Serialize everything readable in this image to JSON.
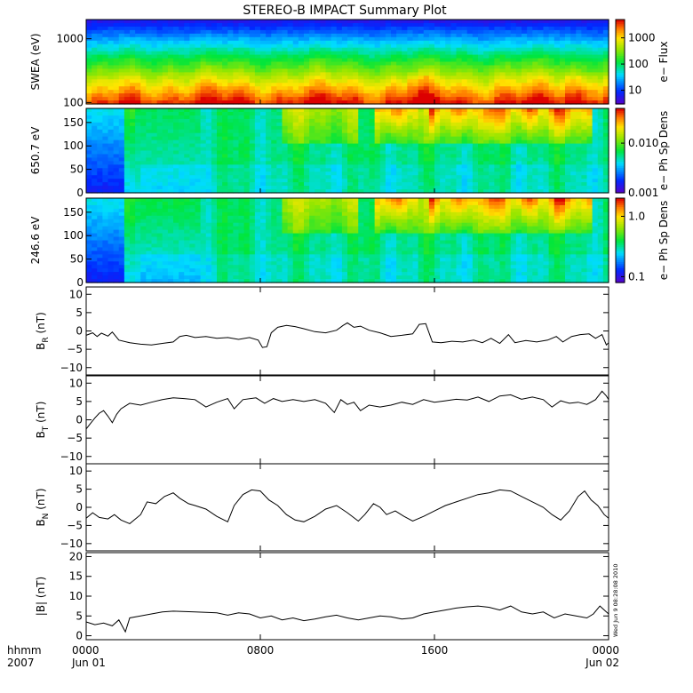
{
  "title": "STEREO-B IMPACT Summary Plot",
  "timestamp": "Wed Jun  9 08:28:08 2010",
  "chart_data": {
    "type": "line",
    "x_range_hours": [
      0,
      24
    ],
    "x_ticks": [
      {
        "hour": 0,
        "time": "0000",
        "date": "Jun 01"
      },
      {
        "hour": 8,
        "time": "0800",
        "date": ""
      },
      {
        "hour": 16,
        "time": "1600",
        "date": ""
      },
      {
        "hour": 24,
        "time": "0000",
        "date": "Jun 02"
      }
    ],
    "x_corner_labels": [
      "hhmm",
      "2007"
    ],
    "spectrograms": [
      {
        "id": "swea",
        "ylabel": "SWEA (eV)",
        "yscale": "log",
        "ylim": [
          95,
          2000
        ],
        "yticks": [
          {
            "v": 100,
            "label": "100"
          },
          {
            "v": 1000,
            "label": "1000"
          }
        ],
        "colorbar_label": "e− Flux",
        "colorbar_scale": "log",
        "colorbar_range": [
          3,
          5000
        ],
        "colorbar_ticks": [
          {
            "v": 10,
            "label": "10"
          },
          {
            "v": 100,
            "label": "100"
          },
          {
            "v": 1000,
            "label": "1000"
          }
        ]
      },
      {
        "id": "pad650",
        "ylabel": "650.7 eV",
        "yscale": "linear",
        "ylim": [
          0,
          180
        ],
        "yticks": [
          {
            "v": 0,
            "label": "0"
          },
          {
            "v": 50,
            "label": "50"
          },
          {
            "v": 100,
            "label": "100"
          },
          {
            "v": 150,
            "label": "150"
          }
        ],
        "colorbar_label": "e− Ph Sp Dens",
        "colorbar_scale": "log",
        "colorbar_range": [
          0.001,
          0.05
        ],
        "colorbar_ticks": [
          {
            "v": 0.001,
            "label": "0.001"
          },
          {
            "v": 0.01,
            "label": "0.010"
          }
        ]
      },
      {
        "id": "pad246",
        "ylabel": "246.6 eV",
        "yscale": "linear",
        "ylim": [
          0,
          180
        ],
        "yticks": [
          {
            "v": 0,
            "label": "0"
          },
          {
            "v": 50,
            "label": "50"
          },
          {
            "v": 100,
            "label": "100"
          },
          {
            "v": 150,
            "label": "150"
          }
        ],
        "colorbar_label": "e− Ph Sp Dens",
        "colorbar_scale": "log",
        "colorbar_range": [
          0.08,
          2.0
        ],
        "colorbar_ticks": [
          {
            "v": 0.1,
            "label": "0.1"
          },
          {
            "v": 1.0,
            "label": "1.0"
          }
        ]
      }
    ],
    "series": [
      {
        "id": "br",
        "ylabel_main": "B",
        "ylabel_sub": "R",
        "ylabel_unit": " (nT)",
        "ylim": [
          -12,
          12
        ],
        "yticks": [
          {
            "v": -10,
            "label": "−10"
          },
          {
            "v": -5,
            "label": "−5"
          },
          {
            "v": 0,
            "label": "0"
          },
          {
            "v": 5,
            "label": "5"
          },
          {
            "v": 10,
            "label": "10"
          }
        ],
        "points": [
          [
            0,
            -1.2
          ],
          [
            0.3,
            -0.5
          ],
          [
            0.5,
            -1.5
          ],
          [
            0.7,
            -0.6
          ],
          [
            1.0,
            -1.4
          ],
          [
            1.2,
            -0.3
          ],
          [
            1.5,
            -2.5
          ],
          [
            2.0,
            -3.2
          ],
          [
            2.5,
            -3.6
          ],
          [
            3.0,
            -3.8
          ],
          [
            3.5,
            -3.4
          ],
          [
            4.0,
            -3.0
          ],
          [
            4.3,
            -1.5
          ],
          [
            4.6,
            -1.2
          ],
          [
            5.0,
            -1.8
          ],
          [
            5.5,
            -1.5
          ],
          [
            6.0,
            -2.0
          ],
          [
            6.5,
            -1.8
          ],
          [
            7.0,
            -2.3
          ],
          [
            7.5,
            -1.8
          ],
          [
            7.9,
            -2.5
          ],
          [
            8.1,
            -4.5
          ],
          [
            8.3,
            -4.3
          ],
          [
            8.5,
            -0.5
          ],
          [
            8.8,
            1.0
          ],
          [
            9.2,
            1.5
          ],
          [
            9.6,
            1.2
          ],
          [
            10.0,
            0.6
          ],
          [
            10.5,
            -0.2
          ],
          [
            11.0,
            -0.5
          ],
          [
            11.5,
            0.2
          ],
          [
            11.8,
            1.5
          ],
          [
            12.0,
            2.2
          ],
          [
            12.3,
            1.0
          ],
          [
            12.6,
            1.3
          ],
          [
            13.0,
            0.2
          ],
          [
            13.5,
            -0.5
          ],
          [
            14.0,
            -1.5
          ],
          [
            14.5,
            -1.2
          ],
          [
            15.0,
            -0.8
          ],
          [
            15.3,
            1.8
          ],
          [
            15.6,
            2.0
          ],
          [
            15.9,
            -3.0
          ],
          [
            16.3,
            -3.2
          ],
          [
            16.8,
            -2.8
          ],
          [
            17.3,
            -3.0
          ],
          [
            17.8,
            -2.5
          ],
          [
            18.2,
            -3.2
          ],
          [
            18.6,
            -2.0
          ],
          [
            19.0,
            -3.4
          ],
          [
            19.4,
            -1.0
          ],
          [
            19.7,
            -3.2
          ],
          [
            20.2,
            -2.6
          ],
          [
            20.7,
            -3.0
          ],
          [
            21.2,
            -2.5
          ],
          [
            21.6,
            -1.5
          ],
          [
            21.9,
            -3.0
          ],
          [
            22.3,
            -1.5
          ],
          [
            22.7,
            -1.0
          ],
          [
            23.1,
            -0.8
          ],
          [
            23.4,
            -2.0
          ],
          [
            23.7,
            -1.0
          ],
          [
            23.9,
            -3.8
          ],
          [
            24.0,
            -3.2
          ]
        ]
      },
      {
        "id": "bt",
        "ylabel_main": "B",
        "ylabel_sub": "T",
        "ylabel_unit": " (nT)",
        "ylim": [
          -12,
          12
        ],
        "yticks": [
          {
            "v": -10,
            "label": "−10"
          },
          {
            "v": -5,
            "label": "−5"
          },
          {
            "v": 0,
            "label": "0"
          },
          {
            "v": 5,
            "label": "5"
          },
          {
            "v": 10,
            "label": "10"
          }
        ],
        "points": [
          [
            0,
            -2.5
          ],
          [
            0.2,
            -1.0
          ],
          [
            0.4,
            0.5
          ],
          [
            0.6,
            1.8
          ],
          [
            0.8,
            2.5
          ],
          [
            1.0,
            1.0
          ],
          [
            1.2,
            -0.8
          ],
          [
            1.4,
            1.5
          ],
          [
            1.6,
            3.0
          ],
          [
            2.0,
            4.5
          ],
          [
            2.5,
            4.0
          ],
          [
            3.0,
            4.8
          ],
          [
            3.5,
            5.5
          ],
          [
            4.0,
            6.0
          ],
          [
            4.5,
            5.8
          ],
          [
            5.0,
            5.5
          ],
          [
            5.5,
            3.5
          ],
          [
            6.0,
            4.8
          ],
          [
            6.5,
            5.8
          ],
          [
            6.8,
            3.0
          ],
          [
            7.2,
            5.5
          ],
          [
            7.8,
            6.0
          ],
          [
            8.2,
            4.5
          ],
          [
            8.6,
            5.8
          ],
          [
            9.0,
            5.0
          ],
          [
            9.5,
            5.5
          ],
          [
            10.0,
            5.0
          ],
          [
            10.5,
            5.5
          ],
          [
            11.0,
            4.5
          ],
          [
            11.4,
            2.0
          ],
          [
            11.7,
            5.5
          ],
          [
            12.0,
            4.2
          ],
          [
            12.3,
            4.8
          ],
          [
            12.6,
            2.5
          ],
          [
            13.0,
            4.0
          ],
          [
            13.5,
            3.5
          ],
          [
            14.0,
            4.0
          ],
          [
            14.5,
            4.8
          ],
          [
            15.0,
            4.2
          ],
          [
            15.5,
            5.5
          ],
          [
            16.0,
            4.8
          ],
          [
            16.5,
            5.2
          ],
          [
            17.0,
            5.6
          ],
          [
            17.5,
            5.4
          ],
          [
            18.0,
            6.2
          ],
          [
            18.5,
            5.0
          ],
          [
            19.0,
            6.5
          ],
          [
            19.5,
            6.8
          ],
          [
            20.0,
            5.6
          ],
          [
            20.5,
            6.2
          ],
          [
            21.0,
            5.5
          ],
          [
            21.4,
            3.5
          ],
          [
            21.8,
            5.2
          ],
          [
            22.2,
            4.5
          ],
          [
            22.6,
            4.8
          ],
          [
            23.0,
            4.2
          ],
          [
            23.4,
            5.5
          ],
          [
            23.7,
            7.8
          ],
          [
            23.9,
            6.5
          ],
          [
            24.0,
            5.5
          ]
        ]
      },
      {
        "id": "bn",
        "ylabel_main": "B",
        "ylabel_sub": "N",
        "ylabel_unit": " (nT)",
        "ylim": [
          -12,
          12
        ],
        "yticks": [
          {
            "v": -10,
            "label": "−10"
          },
          {
            "v": -5,
            "label": "−5"
          },
          {
            "v": 0,
            "label": "0"
          },
          {
            "v": 5,
            "label": "5"
          },
          {
            "v": 10,
            "label": "10"
          }
        ],
        "points": [
          [
            0,
            -3.0
          ],
          [
            0.3,
            -1.5
          ],
          [
            0.6,
            -2.8
          ],
          [
            1.0,
            -3.2
          ],
          [
            1.3,
            -2.0
          ],
          [
            1.6,
            -3.5
          ],
          [
            2.0,
            -4.5
          ],
          [
            2.5,
            -2.0
          ],
          [
            2.8,
            1.5
          ],
          [
            3.2,
            1.0
          ],
          [
            3.6,
            3.0
          ],
          [
            4.0,
            4.0
          ],
          [
            4.3,
            2.5
          ],
          [
            4.7,
            1.0
          ],
          [
            5.0,
            0.5
          ],
          [
            5.5,
            -0.5
          ],
          [
            6.0,
            -2.5
          ],
          [
            6.5,
            -4.0
          ],
          [
            6.8,
            0.5
          ],
          [
            7.2,
            3.5
          ],
          [
            7.6,
            4.8
          ],
          [
            8.0,
            4.5
          ],
          [
            8.4,
            2.0
          ],
          [
            8.8,
            0.5
          ],
          [
            9.2,
            -2.0
          ],
          [
            9.6,
            -3.5
          ],
          [
            10.0,
            -4.0
          ],
          [
            10.5,
            -2.5
          ],
          [
            11.0,
            -0.5
          ],
          [
            11.5,
            0.5
          ],
          [
            12.0,
            -1.5
          ],
          [
            12.5,
            -3.8
          ],
          [
            12.8,
            -2.0
          ],
          [
            13.2,
            1.0
          ],
          [
            13.5,
            0.0
          ],
          [
            13.8,
            -2.0
          ],
          [
            14.2,
            -1.0
          ],
          [
            14.6,
            -2.5
          ],
          [
            15.0,
            -3.8
          ],
          [
            15.5,
            -2.5
          ],
          [
            16.0,
            -1.0
          ],
          [
            16.5,
            0.5
          ],
          [
            17.0,
            1.5
          ],
          [
            17.5,
            2.5
          ],
          [
            18.0,
            3.5
          ],
          [
            18.5,
            4.0
          ],
          [
            19.0,
            4.8
          ],
          [
            19.5,
            4.5
          ],
          [
            20.0,
            3.0
          ],
          [
            20.5,
            1.5
          ],
          [
            21.0,
            0.0
          ],
          [
            21.4,
            -2.0
          ],
          [
            21.8,
            -3.5
          ],
          [
            22.2,
            -1.0
          ],
          [
            22.6,
            3.0
          ],
          [
            22.9,
            4.5
          ],
          [
            23.2,
            2.0
          ],
          [
            23.5,
            0.5
          ],
          [
            23.8,
            -2.0
          ],
          [
            24.0,
            -3.0
          ]
        ]
      },
      {
        "id": "bmag",
        "ylabel_main": "|B|",
        "ylabel_sub": "",
        "ylabel_unit": " (nT)",
        "ylim": [
          -1,
          21
        ],
        "yticks": [
          {
            "v": 0,
            "label": "0"
          },
          {
            "v": 5,
            "label": "5"
          },
          {
            "v": 10,
            "label": "10"
          },
          {
            "v": 15,
            "label": "15"
          },
          {
            "v": 20,
            "label": "20"
          }
        ],
        "points": [
          [
            0,
            3.5
          ],
          [
            0.4,
            2.8
          ],
          [
            0.8,
            3.2
          ],
          [
            1.2,
            2.5
          ],
          [
            1.5,
            4.0
          ],
          [
            1.8,
            1.0
          ],
          [
            2.0,
            4.5
          ],
          [
            2.5,
            5.0
          ],
          [
            3.0,
            5.5
          ],
          [
            3.5,
            6.0
          ],
          [
            4.0,
            6.2
          ],
          [
            5.0,
            6.0
          ],
          [
            6.0,
            5.8
          ],
          [
            6.5,
            5.2
          ],
          [
            7.0,
            5.8
          ],
          [
            7.5,
            5.5
          ],
          [
            8.0,
            4.5
          ],
          [
            8.5,
            5.0
          ],
          [
            9.0,
            4.0
          ],
          [
            9.5,
            4.5
          ],
          [
            10.0,
            3.8
          ],
          [
            10.5,
            4.2
          ],
          [
            11.0,
            4.8
          ],
          [
            11.5,
            5.2
          ],
          [
            12.0,
            4.5
          ],
          [
            12.5,
            4.0
          ],
          [
            13.0,
            4.5
          ],
          [
            13.5,
            5.0
          ],
          [
            14.0,
            4.8
          ],
          [
            14.5,
            4.2
          ],
          [
            15.0,
            4.5
          ],
          [
            15.5,
            5.5
          ],
          [
            16.0,
            6.0
          ],
          [
            16.5,
            6.5
          ],
          [
            17.0,
            7.0
          ],
          [
            17.5,
            7.3
          ],
          [
            18.0,
            7.5
          ],
          [
            18.5,
            7.2
          ],
          [
            19.0,
            6.5
          ],
          [
            19.5,
            7.5
          ],
          [
            20.0,
            6.0
          ],
          [
            20.5,
            5.5
          ],
          [
            21.0,
            6.0
          ],
          [
            21.5,
            4.5
          ],
          [
            22.0,
            5.5
          ],
          [
            22.5,
            5.0
          ],
          [
            23.0,
            4.5
          ],
          [
            23.3,
            5.5
          ],
          [
            23.6,
            7.5
          ],
          [
            23.9,
            6.0
          ],
          [
            24.0,
            5.5
          ]
        ]
      }
    ]
  }
}
